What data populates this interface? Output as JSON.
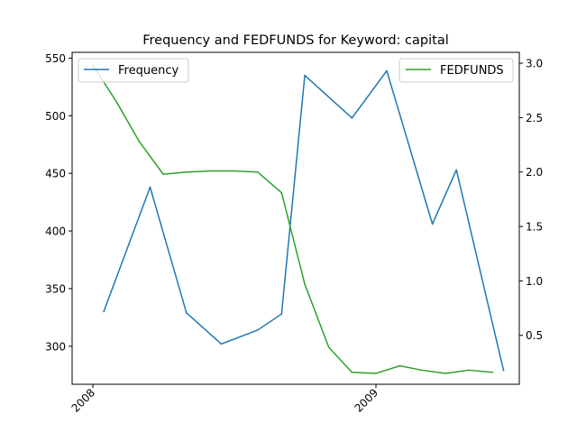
{
  "chart_data": {
    "type": "line",
    "title": "Frequency and FEDFUNDS for Keyword: capital",
    "xlabel": "",
    "ylabel_left": "",
    "ylabel_right": "",
    "x_ticks": [
      "2008",
      "2009"
    ],
    "y_left_ticks": [
      300,
      350,
      400,
      450,
      500,
      550
    ],
    "y_right_ticks": [
      0.5,
      1.0,
      1.5,
      2.0,
      2.5,
      3.0
    ],
    "ylim_left": [
      267,
      555
    ],
    "ylim_right": [
      0.05,
      3.1
    ],
    "grid": false,
    "series": [
      {
        "name": "Frequency",
        "axis": "left",
        "color": "#1f77b4",
        "x": [
          "2008-01-15",
          "2008-03-15",
          "2008-05-01",
          "2008-06-15",
          "2008-08-01",
          "2008-09-01",
          "2008-10-01",
          "2008-12-01",
          "2009-01-15",
          "2009-03-15",
          "2009-04-15",
          "2009-06-15"
        ],
        "values": [
          330,
          438,
          329,
          302,
          314,
          328,
          535,
          498,
          539,
          406,
          453,
          279
        ]
      },
      {
        "name": "FEDFUNDS",
        "axis": "right",
        "color": "#2ca02c",
        "x": [
          "2008-01-01",
          "2008-02-01",
          "2008-03-01",
          "2008-04-01",
          "2008-05-01",
          "2008-06-01",
          "2008-07-01",
          "2008-08-01",
          "2008-09-01",
          "2008-10-01",
          "2008-11-01",
          "2008-12-01",
          "2009-01-01",
          "2009-02-01",
          "2009-03-01",
          "2009-04-01",
          "2009-05-01",
          "2009-06-01"
        ],
        "values": [
          2.98,
          2.64,
          2.28,
          1.98,
          2.0,
          2.01,
          2.01,
          2.0,
          1.81,
          0.97,
          0.39,
          0.16,
          0.15,
          0.22,
          0.18,
          0.15,
          0.18,
          0.16
        ]
      }
    ],
    "legend_left_position": "upper-left",
    "legend_right_position": "upper-right"
  }
}
